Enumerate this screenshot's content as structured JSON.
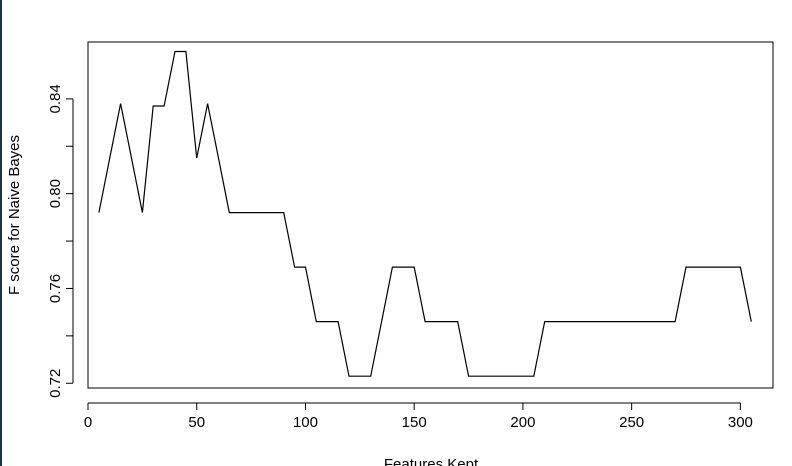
{
  "colors": {
    "line": "#000000",
    "frame": "#000000",
    "background": "#ffffff",
    "left_strip": "#20324a"
  },
  "chart_data": {
    "type": "line",
    "title": "",
    "xlabel": "Features Kept",
    "ylabel": "F score for Naive Bayes",
    "xlim": [
      0,
      315
    ],
    "ylim": [
      0.718,
      0.864
    ],
    "xticks": [
      0,
      50,
      100,
      150,
      200,
      250,
      300
    ],
    "xtick_labels": [
      "0",
      "50",
      "100",
      "150",
      "200",
      "250",
      "300"
    ],
    "yticks": [
      0.72,
      0.74,
      0.76,
      0.78,
      0.8,
      0.82,
      0.84
    ],
    "ytick_labels": [
      "0.72",
      "",
      "0.76",
      "",
      "0.80",
      "",
      "0.84"
    ],
    "grid": false,
    "x": [
      5,
      15,
      25,
      30,
      35,
      40,
      45,
      50,
      55,
      60,
      65,
      70,
      75,
      80,
      85,
      90,
      95,
      100,
      105,
      110,
      115,
      120,
      125,
      130,
      135,
      140,
      145,
      150,
      155,
      160,
      165,
      170,
      175,
      180,
      185,
      190,
      195,
      200,
      205,
      210,
      215,
      220,
      225,
      230,
      235,
      240,
      245,
      250,
      255,
      260,
      265,
      270,
      275,
      280,
      285,
      290,
      295,
      300,
      305
    ],
    "series": [
      {
        "values": [
          0.792,
          0.838,
          0.792,
          0.837,
          0.837,
          0.86,
          0.86,
          0.815,
          0.838,
          0.815,
          0.792,
          0.792,
          0.792,
          0.792,
          0.792,
          0.792,
          0.769,
          0.769,
          0.746,
          0.746,
          0.746,
          0.723,
          0.723,
          0.723,
          0.746,
          0.769,
          0.769,
          0.769,
          0.746,
          0.746,
          0.746,
          0.746,
          0.723,
          0.723,
          0.723,
          0.723,
          0.723,
          0.723,
          0.723,
          0.746,
          0.746,
          0.746,
          0.746,
          0.746,
          0.746,
          0.746,
          0.746,
          0.746,
          0.746,
          0.746,
          0.746,
          0.746,
          0.769,
          0.769,
          0.769,
          0.769,
          0.769,
          0.769,
          0.746
        ]
      }
    ]
  }
}
